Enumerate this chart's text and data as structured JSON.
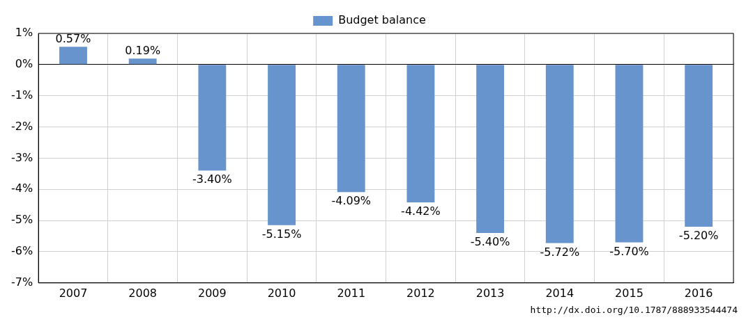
{
  "chart_data": {
    "type": "bar",
    "categories": [
      "2007",
      "2008",
      "2009",
      "2010",
      "2011",
      "2012",
      "2013",
      "2014",
      "2015",
      "2016"
    ],
    "series": [
      {
        "name": "Budget balance",
        "color": "#6794cc",
        "values": [
          0.57,
          0.19,
          -3.4,
          -5.15,
          -4.09,
          -4.42,
          -5.4,
          -5.72,
          -5.7,
          -5.2
        ],
        "value_labels": [
          "0.57%",
          "0.19%",
          "-3.40%",
          "-5.15%",
          "-4.09%",
          "-4.42%",
          "-5.40%",
          "-5.72%",
          "-5.70%",
          "-5.20%"
        ]
      }
    ],
    "ylim": [
      -7,
      1
    ],
    "yticks": [
      {
        "value": 1,
        "label": "1%"
      },
      {
        "value": 0,
        "label": "0%"
      },
      {
        "value": -1,
        "label": "-1%"
      },
      {
        "value": -2,
        "label": "-2%"
      },
      {
        "value": -3,
        "label": "-3%"
      },
      {
        "value": -4,
        "label": "-4%"
      },
      {
        "value": -5,
        "label": "-5%"
      },
      {
        "value": -6,
        "label": "-6%"
      },
      {
        "value": -7,
        "label": "-7%"
      }
    ],
    "grid": true,
    "legend": "top",
    "annotations": [
      "http://dx.doi.org/10.1787/888933544474"
    ]
  }
}
